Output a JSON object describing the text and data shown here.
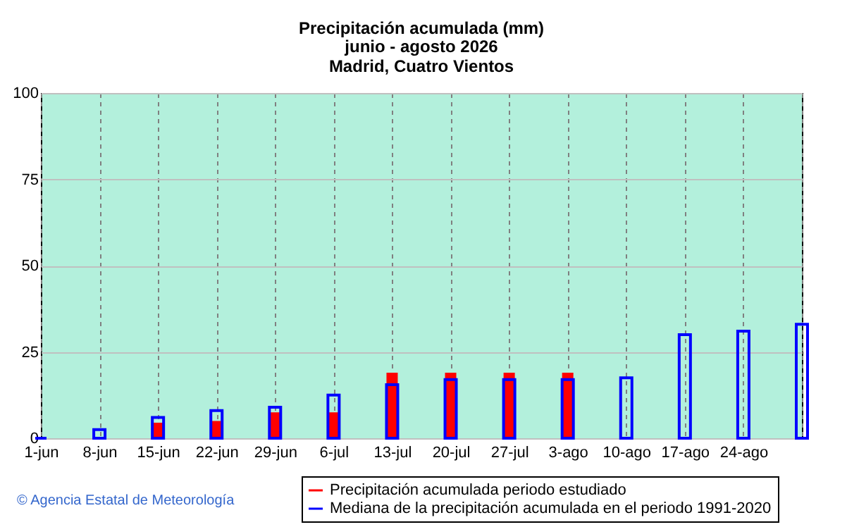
{
  "chart_data": {
    "type": "bar",
    "title": "Precipitación acumulada (mm)",
    "subtitle": "junio - agosto 2026\nMadrid, Cuatro Vientos",
    "categories": [
      "1-jun",
      "8-jun",
      "15-jun",
      "22-jun",
      "29-jun",
      "6-jul",
      "13-jul",
      "20-jul",
      "27-jul",
      "3-ago",
      "10-ago",
      "17-ago",
      "24-ago",
      null
    ],
    "series": [
      {
        "name": "Precipitación acumulada periodo estudiado",
        "color": "#ff0000",
        "values": [
          0,
          0,
          4.5,
          5,
          7.5,
          7.5,
          19,
          19,
          19,
          19,
          null,
          null,
          null,
          null
        ]
      },
      {
        "name": "Mediana de la precipitación acumulada en el periodo 1991-2020",
        "color": "#0000ff",
        "values": [
          0,
          2.5,
          6,
          8,
          9,
          12.5,
          15.5,
          17,
          17,
          17,
          17.5,
          30,
          31,
          33
        ]
      }
    ],
    "ylim": [
      0,
      100
    ],
    "yticks": [
      0,
      25,
      50,
      75,
      100
    ],
    "grid": true,
    "legend": "bottom",
    "annotations": [
      "© Agencia Estatal de Meteorología"
    ]
  }
}
